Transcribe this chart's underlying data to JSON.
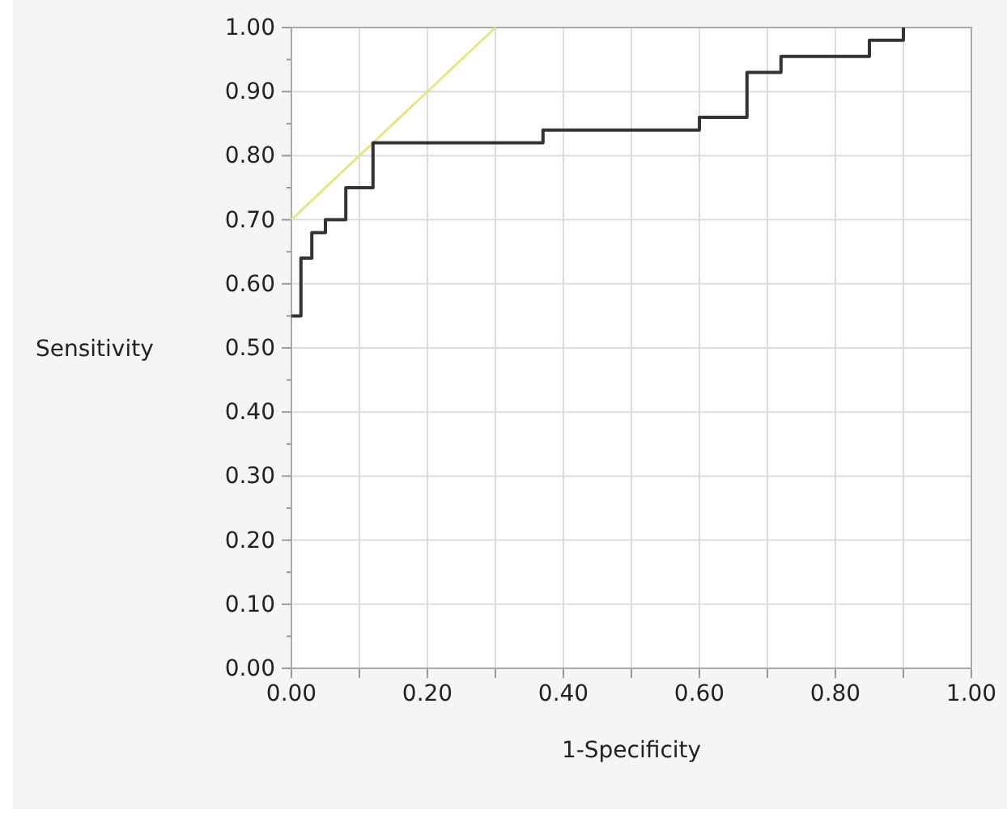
{
  "chart_data": {
    "type": "line",
    "xlabel": "1-Specificity",
    "ylabel": "Sensitivity",
    "xlim": [
      0,
      1
    ],
    "ylim": [
      0,
      1
    ],
    "xticks": [
      {
        "value": 0,
        "label": "0.00"
      },
      {
        "value": 0.1,
        "label": null
      },
      {
        "value": 0.2,
        "label": "0.20"
      },
      {
        "value": 0.3,
        "label": null
      },
      {
        "value": 0.4,
        "label": "0.40"
      },
      {
        "value": 0.5,
        "label": null
      },
      {
        "value": 0.6,
        "label": "0.60"
      },
      {
        "value": 0.7,
        "label": null
      },
      {
        "value": 0.8,
        "label": "0.80"
      },
      {
        "value": 0.9,
        "label": null
      },
      {
        "value": 1,
        "label": "1.00"
      }
    ],
    "yticks": [
      {
        "value": 0,
        "label": "0.00"
      },
      {
        "value": 0.05,
        "label": null
      },
      {
        "value": 0.1,
        "label": "0.10"
      },
      {
        "value": 0.15,
        "label": null
      },
      {
        "value": 0.2,
        "label": "0.20"
      },
      {
        "value": 0.25,
        "label": null
      },
      {
        "value": 0.3,
        "label": "0.30"
      },
      {
        "value": 0.35,
        "label": null
      },
      {
        "value": 0.4,
        "label": "0.40"
      },
      {
        "value": 0.45,
        "label": null
      },
      {
        "value": 0.5,
        "label": "0.50"
      },
      {
        "value": 0.55,
        "label": null
      },
      {
        "value": 0.6,
        "label": "0.60"
      },
      {
        "value": 0.65,
        "label": null
      },
      {
        "value": 0.7,
        "label": "0.70"
      },
      {
        "value": 0.75,
        "label": null
      },
      {
        "value": 0.8,
        "label": "0.80"
      },
      {
        "value": 0.85,
        "label": null
      },
      {
        "value": 0.9,
        "label": "0.90"
      },
      {
        "value": 0.95,
        "label": null
      },
      {
        "value": 1,
        "label": "1.00"
      }
    ],
    "grid": true,
    "series": [
      {
        "color": "#e6e680",
        "x": [
          0,
          0.3
        ],
        "values": [
          0.7,
          1.0
        ]
      },
      {
        "type": "step",
        "color": "#333333",
        "x": [
          0,
          0.014,
          0.03,
          0.05,
          0.08,
          0.12,
          0.37,
          0.6,
          0.67,
          0.72,
          0.83,
          0.85,
          0.9
        ],
        "values": [
          0.55,
          0.64,
          0.68,
          0.7,
          0.75,
          0.82,
          0.84,
          0.86,
          0.93,
          0.955,
          0.955,
          0.98,
          1.0
        ]
      }
    ]
  }
}
